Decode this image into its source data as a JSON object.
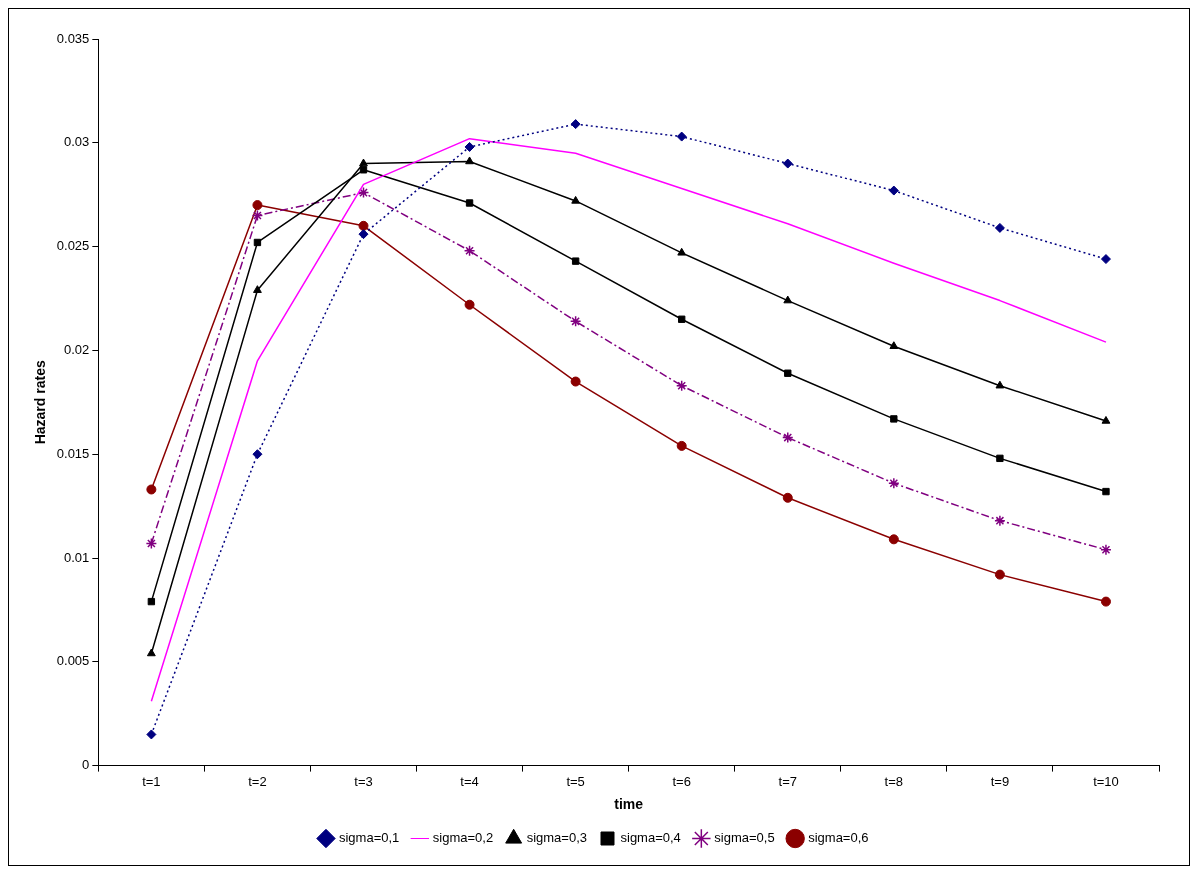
{
  "chart_data": {
    "type": "line",
    "xlabel": "time",
    "ylabel": "Hazard rates",
    "categories": [
      "t=1",
      "t=2",
      "t=3",
      "t=4",
      "t=5",
      "t=6",
      "t=7",
      "t=8",
      "t=9",
      "t=10"
    ],
    "ylim": [
      0,
      0.035
    ],
    "yticks": [
      0,
      0.005,
      0.01,
      0.015,
      0.02,
      0.025,
      0.03,
      0.035
    ],
    "grid": false,
    "legend": "bottom",
    "series": [
      {
        "name": "sigma=0,1",
        "color": "#000080",
        "marker": "diamond",
        "line_style": "dotted",
        "values": [
          0.0015,
          0.015,
          0.0256,
          0.0298,
          0.0309,
          0.0303,
          0.029,
          0.0277,
          0.0259,
          0.0244
        ]
      },
      {
        "name": "sigma=0,2",
        "color": "#ff00ff",
        "marker": "none",
        "line_style": "solid",
        "values": [
          0.0031,
          0.0195,
          0.028,
          0.0302,
          0.0295,
          0.0278,
          0.0261,
          0.0242,
          0.0224,
          0.0204
        ]
      },
      {
        "name": "sigma=0,3",
        "color": "#000000",
        "marker": "triangle",
        "line_style": "solid",
        "values": [
          0.0054,
          0.0229,
          0.029,
          0.0291,
          0.0272,
          0.0247,
          0.0224,
          0.0202,
          0.0183,
          0.0166
        ]
      },
      {
        "name": "sigma=0,4",
        "color": "#000000",
        "marker": "square",
        "line_style": "solid",
        "values": [
          0.0079,
          0.0252,
          0.0287,
          0.0271,
          0.0243,
          0.0215,
          0.0189,
          0.0167,
          0.0148,
          0.0132
        ]
      },
      {
        "name": "sigma=0,5",
        "color": "#800080",
        "marker": "cross",
        "line_style": "dashed",
        "values": [
          0.0107,
          0.0265,
          0.0276,
          0.0248,
          0.0214,
          0.0183,
          0.0158,
          0.0136,
          0.0118,
          0.0104
        ]
      },
      {
        "name": "sigma=0,6",
        "color": "#8b0000",
        "marker": "circle",
        "line_style": "solid",
        "values": [
          0.0133,
          0.027,
          0.026,
          0.0222,
          0.0185,
          0.0154,
          0.0129,
          0.0109,
          0.0092,
          0.0079
        ]
      }
    ]
  }
}
